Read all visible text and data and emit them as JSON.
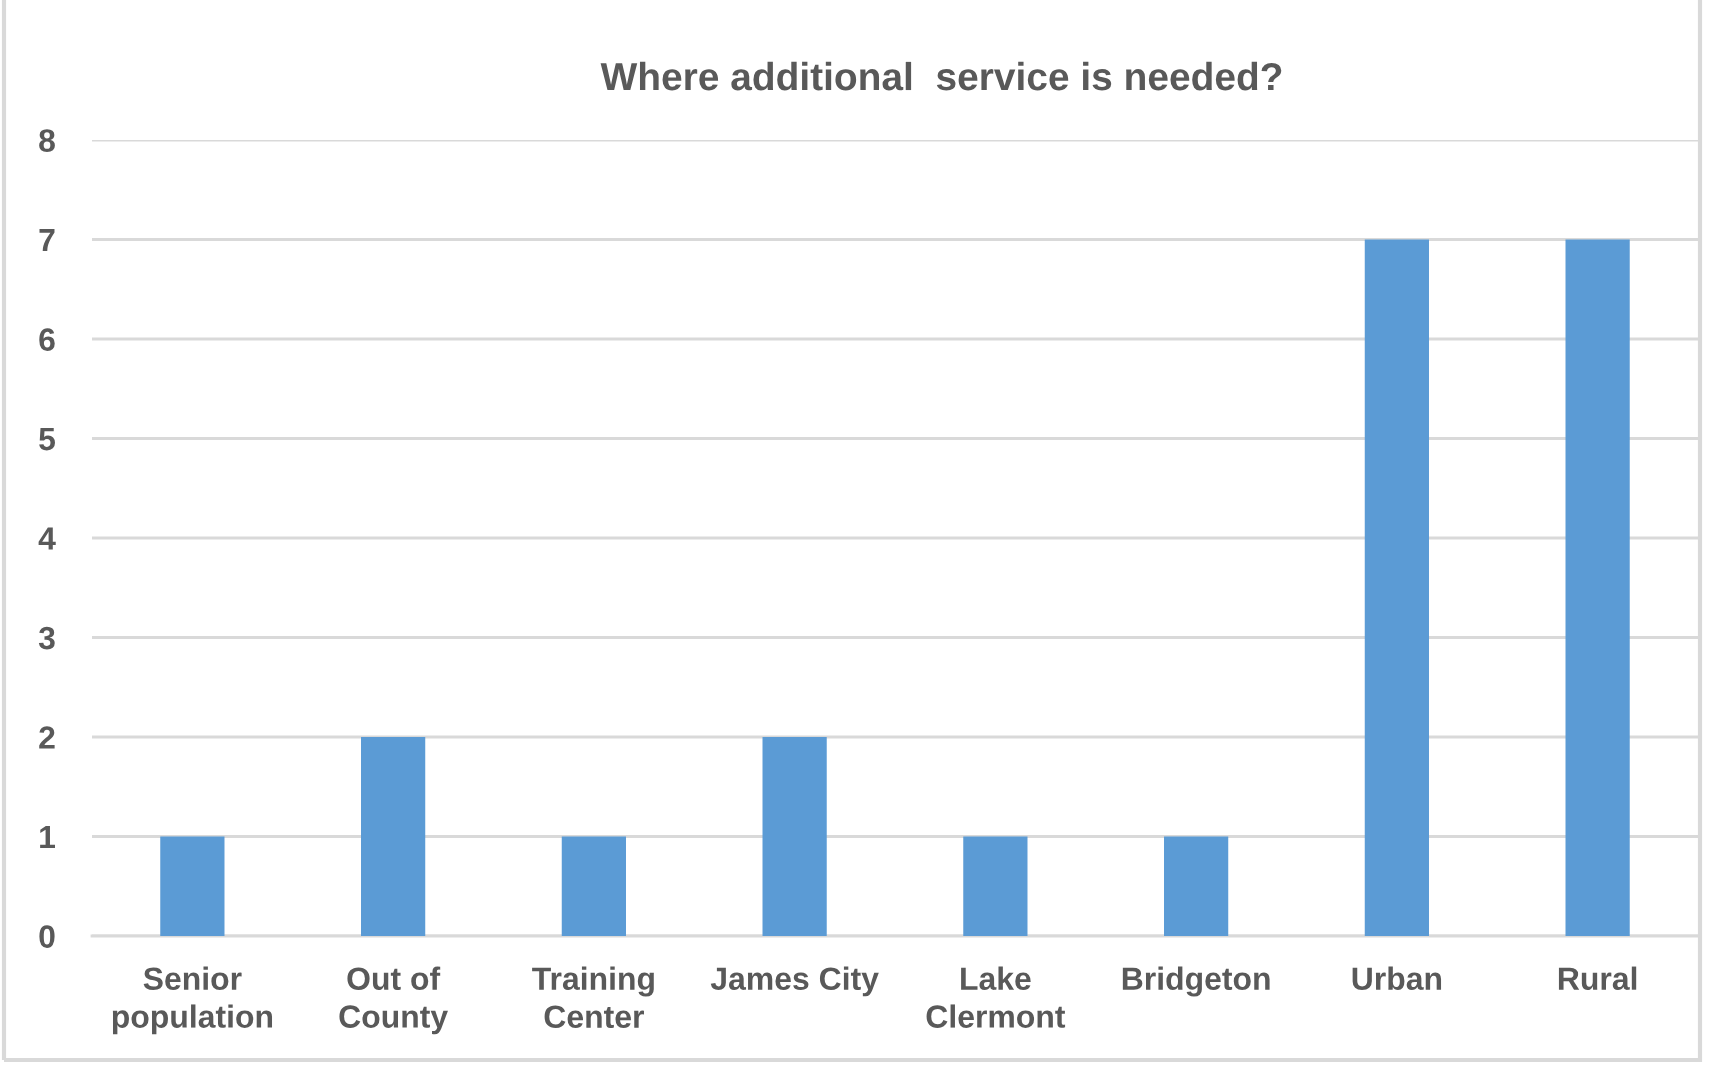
{
  "chart_data": {
    "type": "bar",
    "title": "Where additional  service is needed?",
    "categories": [
      "Senior\npopulation",
      "Out of\nCounty",
      "Training\nCenter",
      "James City",
      "Lake\nClermont",
      "Bridgeton",
      "Urban",
      "Rural"
    ],
    "values": [
      1,
      2,
      1,
      2,
      1,
      1,
      7,
      7
    ],
    "color": "#5b9bd5",
    "ylim": [
      0,
      8
    ],
    "yticks": [
      0,
      1,
      2,
      3,
      4,
      5,
      6,
      7,
      8
    ],
    "grid": "y",
    "legend": false
  }
}
